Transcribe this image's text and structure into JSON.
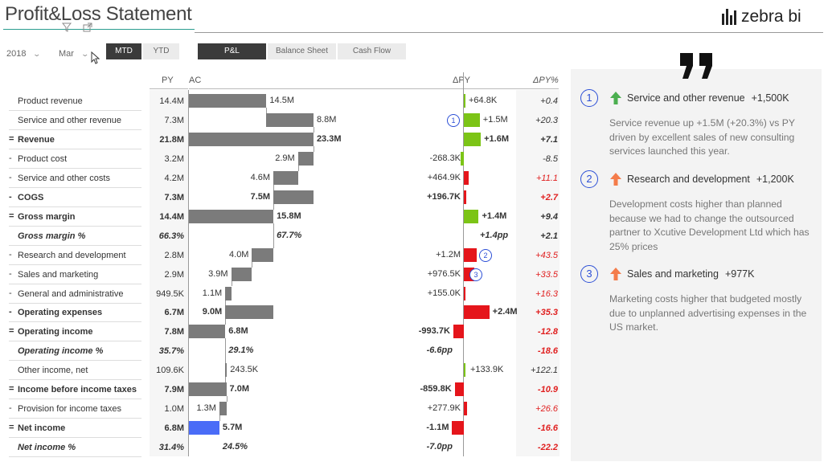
{
  "header": {
    "title": "Profit&Loss Statement",
    "logo_text": "zebra bi"
  },
  "filters": {
    "year": "2018",
    "month": "Mar",
    "period_buttons": [
      "MTD",
      "YTD"
    ],
    "period_active": "MTD",
    "report_tabs": [
      "P&L",
      "Balance Sheet",
      "Cash Flow"
    ],
    "report_active": "P&L"
  },
  "columns": {
    "py": "PY",
    "ac": "AC",
    "delta_py": "ΔPY",
    "delta_py_pct": "ΔPY%"
  },
  "rows": [
    {
      "prefix": "",
      "label": "Product revenue",
      "py": "14.4M",
      "ac": "14.5M",
      "dpy": "+64.8K",
      "dpyp": "+0.4",
      "style": "normal"
    },
    {
      "prefix": "",
      "label": "Service and other revenue",
      "py": "7.3M",
      "ac": "8.8M",
      "dpy": "+1.5M",
      "dpyp": "+20.3",
      "style": "normal"
    },
    {
      "prefix": "=",
      "label": "Revenue",
      "py": "21.8M",
      "ac": "23.3M",
      "dpy": "+1.6M",
      "dpyp": "+7.1",
      "style": "bold"
    },
    {
      "prefix": "-",
      "label": "Product cost",
      "py": "3.2M",
      "ac": "2.9M",
      "dpy": "-268.3K",
      "dpyp": "-8.5",
      "style": "normal"
    },
    {
      "prefix": "-",
      "label": "Service and other costs",
      "py": "4.2M",
      "ac": "4.6M",
      "dpy": "+464.9K",
      "dpyp": "+11.1",
      "style": "normal"
    },
    {
      "prefix": "-",
      "label": "COGS",
      "py": "7.3M",
      "ac": "7.5M",
      "dpy": "+196.7K",
      "dpyp": "+2.7",
      "style": "bold"
    },
    {
      "prefix": "=",
      "label": "Gross margin",
      "py": "14.4M",
      "ac": "15.8M",
      "dpy": "+1.4M",
      "dpyp": "+9.4",
      "style": "bold"
    },
    {
      "prefix": "",
      "label": "Gross margin %",
      "py": "66.3%",
      "ac": "67.7%",
      "dpy": "+1.4pp",
      "dpyp": "+2.1",
      "style": "ital"
    },
    {
      "prefix": "-",
      "label": "Research and development",
      "py": "2.8M",
      "ac": "4.0M",
      "dpy": "+1.2M",
      "dpyp": "+43.5",
      "style": "normal"
    },
    {
      "prefix": "-",
      "label": "Sales and marketing",
      "py": "2.9M",
      "ac": "3.9M",
      "dpy": "+976.5K",
      "dpyp": "+33.5",
      "style": "normal"
    },
    {
      "prefix": "-",
      "label": "General and administrative",
      "py": "949.5K",
      "ac": "1.1M",
      "dpy": "+155.0K",
      "dpyp": "+16.3",
      "style": "normal"
    },
    {
      "prefix": "-",
      "label": "Operating expenses",
      "py": "6.7M",
      "ac": "9.0M",
      "dpy": "+2.4M",
      "dpyp": "+35.3",
      "style": "bold"
    },
    {
      "prefix": "=",
      "label": "Operating income",
      "py": "7.8M",
      "ac": "6.8M",
      "dpy": "-993.7K",
      "dpyp": "-12.8",
      "style": "bold"
    },
    {
      "prefix": "",
      "label": "Operating income %",
      "py": "35.7%",
      "ac": "29.1%",
      "dpy": "-6.6pp",
      "dpyp": "-18.6",
      "style": "ital"
    },
    {
      "prefix": "",
      "label": "Other income, net",
      "py": "109.6K",
      "ac": "243.5K",
      "dpy": "+133.9K",
      "dpyp": "+122.1",
      "style": "normal"
    },
    {
      "prefix": "=",
      "label": "Income before income taxes",
      "py": "7.9M",
      "ac": "7.0M",
      "dpy": "-859.8K",
      "dpyp": "-10.9",
      "style": "bold"
    },
    {
      "prefix": "-",
      "label": "Provision for income taxes",
      "py": "1.0M",
      "ac": "1.3M",
      "dpy": "+277.9K",
      "dpyp": "+26.6",
      "style": "normal"
    },
    {
      "prefix": "=",
      "label": "Net income",
      "py": "6.8M",
      "ac": "5.7M",
      "dpy": "-1.1M",
      "dpyp": "-16.6",
      "style": "bold"
    },
    {
      "prefix": "",
      "label": "Net income %",
      "py": "31.4%",
      "ac": "24.5%",
      "dpy": "-7.0pp",
      "dpyp": "-22.2",
      "style": "ital"
    }
  ],
  "markers": [
    "1",
    "2",
    "3"
  ],
  "comments": [
    {
      "num": "1",
      "title": "Service and other revenue",
      "value": "+1,500K",
      "text": "Service revenue up +1.5M (+20.3%) vs PY driven by excellent sales of new consulting services launched this year."
    },
    {
      "num": "2",
      "title": "Research and development",
      "value": "+1,200K",
      "text": "Development costs higher than planned because we had to change the outsourced partner to Xcutive Development Ltd which has 25% prices"
    },
    {
      "num": "3",
      "title": "Sales and marketing",
      "value": "+977K",
      "text": "Marketing costs higher that budgeted mostly due to unplanned advertising expenses in the US market."
    }
  ],
  "colors": {
    "good": "#7cc416",
    "bad": "#e5151b",
    "ac_bar": "#7b7b7b",
    "highlight_bar": "#4a6cf7",
    "accent": "#2c4fd6",
    "arrow": "#f47c4a",
    "arrow_up_good": "#4caf50"
  },
  "icons": [
    "filter-icon",
    "expand-icon",
    "chevron-down-icon",
    "quote-icon",
    "arrow-up-icon"
  ]
}
